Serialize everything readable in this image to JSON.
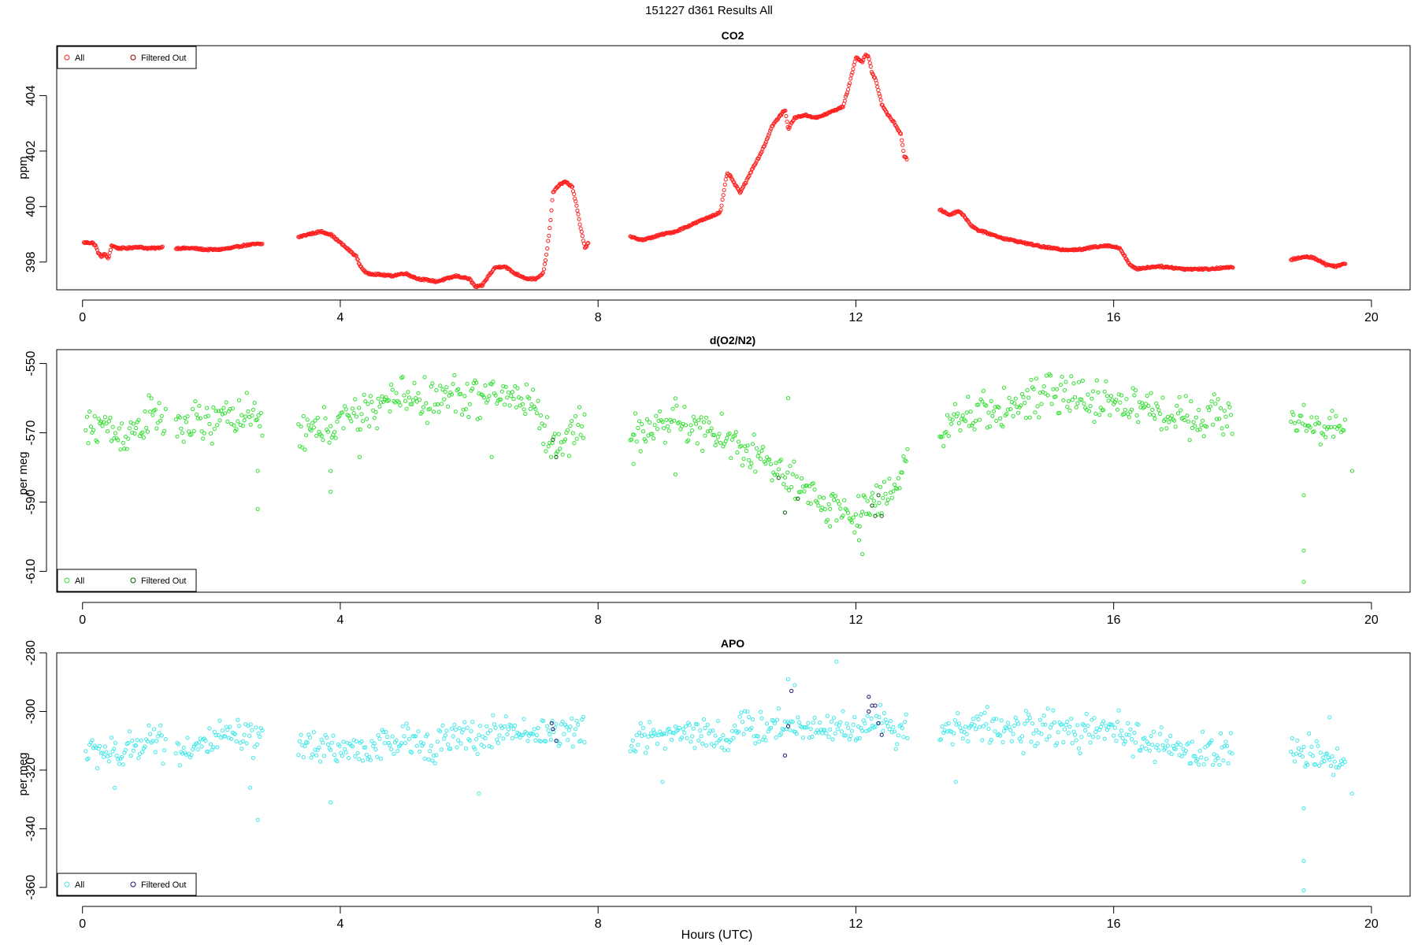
{
  "figure": {
    "title": "151227   d361   Results All",
    "xlabel": "Hours (UTC)"
  },
  "chart_data": [
    {
      "type": "scatter",
      "title": "CO2",
      "ylabel": "ppm",
      "xlim": [
        -0.4,
        20.6
      ],
      "ylim": [
        397.0,
        405.8
      ],
      "xticks": [
        0,
        4,
        8,
        12,
        16,
        20
      ],
      "yticks": [
        398,
        400,
        402,
        404
      ],
      "legend": {
        "placement": "top-left",
        "entries": [
          "All",
          "Filtered Out"
        ]
      },
      "colors": {
        "all": "#ff2020",
        "filtered": "#8b0000"
      },
      "series": [
        {
          "name": "All",
          "segments": [
            {
              "x": [
                0.02,
                0.15,
                0.2,
                0.25,
                0.3,
                0.35,
                0.4,
                0.45,
                0.55,
                0.7,
                0.85,
                1.0,
                1.15,
                1.25
              ],
              "y": [
                398.7,
                398.7,
                398.6,
                398.3,
                398.2,
                398.3,
                398.1,
                398.6,
                398.5,
                398.5,
                398.55,
                398.5,
                398.5,
                398.55
              ]
            },
            {
              "x": [
                1.45,
                1.7,
                1.9,
                2.1,
                2.3,
                2.5,
                2.7,
                2.8
              ],
              "y": [
                398.5,
                398.5,
                398.45,
                398.45,
                398.5,
                398.6,
                398.65,
                398.65
              ]
            },
            {
              "x": [
                3.35,
                3.5,
                3.7,
                3.85,
                3.95,
                4.05,
                4.15,
                4.25,
                4.3,
                4.4,
                4.6,
                4.8,
                5.0,
                5.2,
                5.5,
                5.8,
                6.0,
                6.1,
                6.2,
                6.3,
                6.4,
                6.55,
                6.7,
                6.9,
                7.05,
                7.15,
                7.2,
                7.25,
                7.3,
                7.4,
                7.5,
                7.6,
                7.65,
                7.7,
                7.75,
                7.8,
                7.85
              ],
              "y": [
                398.9,
                399.0,
                399.1,
                399.0,
                398.8,
                398.6,
                398.4,
                398.2,
                397.9,
                397.6,
                397.55,
                397.5,
                397.6,
                397.4,
                397.3,
                397.5,
                397.4,
                397.1,
                397.15,
                397.5,
                397.8,
                397.85,
                397.6,
                397.4,
                397.4,
                397.6,
                398.3,
                399.2,
                400.5,
                400.8,
                400.9,
                400.7,
                400.2,
                399.6,
                399.0,
                398.5,
                398.7
              ]
            },
            {
              "x": [
                8.5,
                8.7,
                8.85,
                9.0,
                9.2,
                9.4,
                9.6,
                9.8,
                9.9,
                9.95,
                10.0,
                10.05,
                10.1,
                10.2,
                10.3,
                10.4,
                10.5,
                10.6,
                10.7,
                10.8,
                10.9,
                10.95,
                11.05,
                11.2,
                11.4,
                11.6,
                11.8,
                11.9,
                12.0,
                12.1,
                12.15,
                12.2,
                12.25,
                12.3,
                12.35,
                12.4,
                12.5,
                12.6,
                12.7,
                12.75,
                12.8
              ],
              "y": [
                398.9,
                398.8,
                398.9,
                399.0,
                399.1,
                399.3,
                399.5,
                399.7,
                399.8,
                400.5,
                401.2,
                401.1,
                400.9,
                400.5,
                400.9,
                401.4,
                401.8,
                402.3,
                402.9,
                403.2,
                403.5,
                402.8,
                403.2,
                403.3,
                403.2,
                403.4,
                403.6,
                404.4,
                405.4,
                405.2,
                405.5,
                405.4,
                404.8,
                404.6,
                404.2,
                403.7,
                403.3,
                403.0,
                402.6,
                401.8,
                401.7
              ]
            },
            {
              "x": [
                13.3,
                13.45,
                13.6,
                13.7,
                13.8,
                13.9,
                14.1,
                14.3,
                14.6,
                14.9,
                15.2,
                15.5,
                15.7,
                15.9,
                16.1,
                16.15,
                16.2,
                16.25,
                16.35,
                16.5,
                16.7,
                16.9,
                17.1,
                17.3,
                17.5,
                17.7,
                17.85
              ],
              "y": [
                399.9,
                399.7,
                399.85,
                399.6,
                399.3,
                399.15,
                399.0,
                398.85,
                398.7,
                398.55,
                398.45,
                398.45,
                398.55,
                398.6,
                398.5,
                398.3,
                398.1,
                397.9,
                397.75,
                397.8,
                397.85,
                397.8,
                397.75,
                397.75,
                397.75,
                397.8,
                397.8
              ]
            },
            {
              "x": [
                18.75,
                18.9,
                19.0,
                19.1,
                19.2,
                19.3,
                19.45,
                19.6
              ],
              "y": [
                398.1,
                398.15,
                398.2,
                398.15,
                398.05,
                397.9,
                397.85,
                397.95
              ]
            }
          ]
        },
        {
          "name": "Filtered Out",
          "segments": []
        }
      ]
    },
    {
      "type": "scatter",
      "title": "d(O2/N2)",
      "ylabel": "per meg",
      "xlim": [
        -0.4,
        20.6
      ],
      "ylim": [
        -616,
        -546
      ],
      "xticks": [
        0,
        4,
        8,
        12,
        16,
        20
      ],
      "yticks": [
        -550,
        -570,
        -590,
        -610
      ],
      "legend": {
        "placement": "bottom-left",
        "entries": [
          "All",
          "Filtered Out"
        ]
      },
      "colors": {
        "all": "#30e030",
        "filtered": "#006400"
      },
      "series": [
        {
          "name": "All",
          "noise": 5,
          "outliers": [
            [
              2.72,
              -581
            ],
            [
              2.72,
              -592
            ],
            [
              3.85,
              -581
            ],
            [
              3.85,
              -587
            ],
            [
              4.3,
              -577
            ],
            [
              6.35,
              -577
            ],
            [
              8.55,
              -579
            ],
            [
              9.2,
              -582
            ],
            [
              10.95,
              -560
            ],
            [
              11.6,
              -597
            ],
            [
              12.05,
              -601
            ],
            [
              12.1,
              -605
            ],
            [
              18.95,
              -604
            ],
            [
              18.95,
              -613
            ],
            [
              18.95,
              -588
            ],
            [
              19.7,
              -581
            ]
          ],
          "segments": [
            {
              "x": [
                0.05,
                0.3,
                0.55,
                0.8,
                1.05,
                1.3
              ],
              "y": [
                -570,
                -567,
                -571,
                -569,
                -565,
                -567
              ]
            },
            {
              "x": [
                1.45,
                1.7,
                2.0,
                2.3,
                2.55,
                2.8
              ],
              "y": [
                -569,
                -567,
                -568,
                -564,
                -566,
                -567
              ]
            },
            {
              "x": [
                3.35,
                3.7,
                4.0,
                4.3,
                4.6,
                5.0,
                5.4,
                5.8,
                6.2,
                6.6,
                7.0,
                7.2,
                7.4,
                7.6,
                7.8
              ],
              "y": [
                -570,
                -569,
                -567,
                -565,
                -562,
                -559,
                -561,
                -559,
                -560,
                -559,
                -561,
                -571,
                -575,
                -569,
                -566
              ]
            },
            {
              "x": [
                8.5,
                8.8,
                9.1,
                9.4,
                9.7,
                10.0,
                10.3,
                10.6,
                10.9,
                11.2,
                11.5,
                11.8,
                12.0,
                12.2,
                12.4,
                12.6,
                12.8
              ],
              "y": [
                -571,
                -569,
                -566,
                -568,
                -570,
                -572,
                -575,
                -578,
                -583,
                -588,
                -590,
                -592,
                -595,
                -590,
                -589,
                -584,
                -578
              ]
            },
            {
              "x": [
                13.3,
                13.6,
                14.0,
                14.5,
                15.0,
                15.5,
                16.0,
                16.5,
                17.0,
                17.5,
                17.85
              ],
              "y": [
                -570,
                -567,
                -564,
                -562,
                -559,
                -560,
                -561,
                -563,
                -565,
                -565,
                -565
              ]
            },
            {
              "x": [
                18.75,
                19.0,
                19.3,
                19.6
              ],
              "y": [
                -568,
                -566,
                -569,
                -569
              ]
            }
          ]
        },
        {
          "name": "Filtered Out",
          "points": [
            [
              7.3,
              -572
            ],
            [
              7.35,
              -577
            ],
            [
              10.8,
              -583
            ],
            [
              10.9,
              -593
            ],
            [
              11.1,
              -589
            ],
            [
              12.25,
              -591
            ],
            [
              12.3,
              -594
            ],
            [
              12.4,
              -594
            ],
            [
              12.35,
              -588
            ]
          ]
        }
      ]
    },
    {
      "type": "scatter",
      "title": "APO",
      "ylabel": "per meg",
      "xlim": [
        -0.4,
        20.6
      ],
      "ylim": [
        -363,
        -280
      ],
      "xticks": [
        0,
        4,
        8,
        12,
        16,
        20
      ],
      "yticks": [
        -280,
        -300,
        -320,
        -340,
        -360
      ],
      "legend": {
        "placement": "bottom-left",
        "entries": [
          "All",
          "Filtered Out"
        ]
      },
      "colors": {
        "all": "#40e8e8",
        "filtered": "#191970"
      },
      "series": [
        {
          "name": "All",
          "noise": 5,
          "outliers": [
            [
              0.5,
              -326
            ],
            [
              2.6,
              -326
            ],
            [
              2.72,
              -337
            ],
            [
              3.85,
              -331
            ],
            [
              6.15,
              -328
            ],
            [
              9.0,
              -324
            ],
            [
              10.95,
              -289
            ],
            [
              11.05,
              -291
            ],
            [
              11.7,
              -283
            ],
            [
              13.55,
              -324
            ],
            [
              18.95,
              -351
            ],
            [
              18.95,
              -361
            ],
            [
              18.95,
              -333
            ],
            [
              19.35,
              -302
            ],
            [
              19.7,
              -328
            ]
          ],
          "segments": [
            {
              "x": [
                0.05,
                0.3,
                0.55,
                0.8,
                1.05,
                1.3
              ],
              "y": [
                -314,
                -313,
                -316,
                -312,
                -308,
                -311
              ]
            },
            {
              "x": [
                1.45,
                1.7,
                2.0,
                2.3,
                2.55,
                2.8
              ],
              "y": [
                -313,
                -312,
                -311,
                -308,
                -310,
                -311
              ]
            },
            {
              "x": [
                3.35,
                3.7,
                4.0,
                4.3,
                4.6,
                5.0,
                5.4,
                5.8,
                6.2,
                6.6,
                7.0,
                7.3,
                7.6,
                7.8
              ],
              "y": [
                -312,
                -311,
                -313,
                -313,
                -312,
                -310,
                -311,
                -309,
                -309,
                -306,
                -307,
                -307,
                -307,
                -308
              ]
            },
            {
              "x": [
                8.5,
                8.8,
                9.1,
                9.4,
                9.7,
                10.0,
                10.3,
                10.6,
                10.9,
                11.2,
                11.5,
                11.8,
                12.1,
                12.4,
                12.8
              ],
              "y": [
                -312,
                -307,
                -308,
                -306,
                -308,
                -309,
                -305,
                -306,
                -304,
                -306,
                -304,
                -306,
                -305,
                -304,
                -306
              ]
            },
            {
              "x": [
                13.3,
                13.6,
                14.0,
                14.5,
                15.0,
                15.5,
                16.0,
                16.5,
                17.0,
                17.5,
                17.85
              ],
              "y": [
                -307,
                -305,
                -305,
                -307,
                -305,
                -308,
                -306,
                -311,
                -313,
                -314,
                -313
              ]
            },
            {
              "x": [
                18.75,
                19.0,
                19.3,
                19.6
              ],
              "y": [
                -314,
                -313,
                -316,
                -316
              ]
            }
          ]
        },
        {
          "name": "Filtered Out",
          "points": [
            [
              7.3,
              -306
            ],
            [
              7.35,
              -310
            ],
            [
              7.28,
              -304
            ],
            [
              10.9,
              -315
            ],
            [
              10.95,
              -305
            ],
            [
              11.0,
              -293
            ],
            [
              12.2,
              -295
            ],
            [
              12.2,
              -300
            ],
            [
              12.25,
              -298
            ],
            [
              12.3,
              -298
            ],
            [
              12.35,
              -304
            ],
            [
              12.4,
              -308
            ]
          ]
        }
      ]
    }
  ]
}
